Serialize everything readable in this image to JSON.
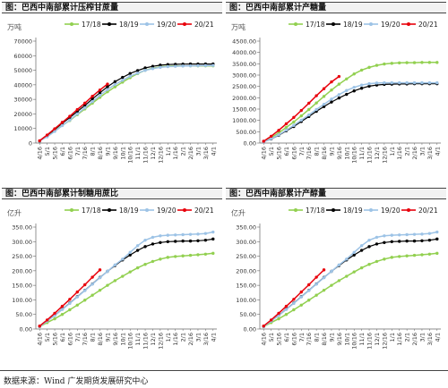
{
  "legend_labels": [
    "17/18",
    "18/19",
    "19/20",
    "20/21"
  ],
  "series_colors": [
    "#92d050",
    "#000000",
    "#9dc3e6",
    "#e8000b"
  ],
  "x_tick_labels": [
    "4/16",
    "5/1",
    "5/16",
    "6/1",
    "6/16",
    "7/1",
    "7/16",
    "8/1",
    "8/16",
    "9/1",
    "9/16",
    "10/1",
    "10/16",
    "11/1",
    "11/16",
    "12/1",
    "12/16",
    "1/1",
    "1/16",
    "2/1",
    "2/16",
    "3/1",
    "3/16",
    "4/1"
  ],
  "source": "数据来源：Wind  广发期货发展研究中心",
  "chart_data": [
    {
      "type": "line",
      "title": "图：巴西中南部累计压榨甘蔗量",
      "unit_label": "万吨",
      "yticks": [
        "0",
        "10000",
        "20000",
        "30000",
        "40000",
        "50000",
        "60000",
        "70000"
      ],
      "ylim": [
        0,
        70000
      ],
      "series": [
        {
          "name": "17/18",
          "values": [
            1400,
            4800,
            8300,
            12100,
            15500,
            19500,
            23400,
            27400,
            31400,
            35200,
            38600,
            41800,
            44900,
            47700,
            50000,
            51400,
            52400,
            52800,
            52900,
            52950,
            53000,
            53000,
            53000,
            53000
          ]
        },
        {
          "name": "18/19",
          "values": [
            1300,
            5200,
            9300,
            13600,
            17500,
            21700,
            25800,
            30300,
            34500,
            38700,
            42200,
            45100,
            47800,
            49800,
            51600,
            52700,
            53500,
            53900,
            54100,
            54200,
            54300,
            54300,
            54300,
            54300
          ]
        },
        {
          "name": "19/20",
          "values": [
            1400,
            4300,
            8000,
            12000,
            15800,
            20000,
            24200,
            28500,
            32700,
            36700,
            40200,
            43100,
            45900,
            48000,
            49900,
            51100,
            52000,
            52500,
            52700,
            52900,
            53000,
            53100,
            53200,
            53300
          ]
        },
        {
          "name": "20/21",
          "values": [
            1600,
            5500,
            9800,
            14200,
            18400,
            23000,
            27400,
            32100,
            36400,
            40500,
            null,
            null,
            null,
            null,
            null,
            null,
            null,
            null,
            null,
            null,
            null,
            null,
            null,
            null
          ]
        }
      ]
    },
    {
      "type": "line",
      "title": "图：巴西中南部累计产糖量",
      "unit_label": "万吨",
      "yticks": [
        "0.00",
        "500.00",
        "1000.00",
        "1500.00",
        "2000.00",
        "2500.00",
        "3000.00",
        "3500.00",
        "4000.00",
        "4500.00"
      ],
      "ylim": [
        0,
        4500
      ],
      "series": [
        {
          "name": "17/18",
          "values": [
            70,
            240,
            450,
            690,
            930,
            1200,
            1480,
            1770,
            2060,
            2340,
            2600,
            2830,
            3050,
            3220,
            3340,
            3430,
            3490,
            3520,
            3540,
            3550,
            3550,
            3560,
            3560,
            3560
          ]
        },
        {
          "name": "18/19",
          "values": [
            50,
            180,
            340,
            540,
            730,
            950,
            1170,
            1400,
            1610,
            1810,
            1990,
            2150,
            2300,
            2420,
            2510,
            2560,
            2590,
            2600,
            2610,
            2610,
            2620,
            2620,
            2620,
            2620
          ]
        },
        {
          "name": "19/20",
          "values": [
            50,
            190,
            360,
            570,
            780,
            1010,
            1240,
            1480,
            1710,
            1940,
            2140,
            2320,
            2460,
            2560,
            2620,
            2650,
            2660,
            2660,
            2660,
            2660,
            2660,
            2660,
            2660,
            2660
          ]
        },
        {
          "name": "20/21",
          "values": [
            80,
            300,
            560,
            850,
            1130,
            1440,
            1760,
            2090,
            2400,
            2700,
            2940,
            null,
            null,
            null,
            null,
            null,
            null,
            null,
            null,
            null,
            null,
            null,
            null,
            null
          ]
        }
      ]
    },
    {
      "type": "line",
      "title": "图：巴西中南部累计制糖用蔗比",
      "unit_label": "亿升",
      "yticks": [
        "0.00",
        "50.00",
        "100.00",
        "150.00",
        "200.00",
        "250.00",
        "300.00",
        "350.00"
      ],
      "ylim": [
        0,
        350
      ],
      "series": [
        {
          "name": "17/18",
          "values": [
            8,
            22,
            35,
            50,
            66,
            82,
            99,
            116,
            133,
            150,
            166,
            181,
            196,
            210,
            222,
            232,
            240,
            246,
            249,
            251,
            253,
            255,
            257,
            260
          ]
        },
        {
          "name": "18/19",
          "values": [
            9,
            28,
            47,
            68,
            89,
            111,
            133,
            155,
            177,
            198,
            218,
            237,
            254,
            270,
            283,
            292,
            297,
            300,
            301,
            302,
            302,
            303,
            305,
            309
          ]
        },
        {
          "name": "19/20",
          "values": [
            8,
            27,
            46,
            67,
            88,
            110,
            132,
            154,
            176,
            198,
            220,
            240,
            263,
            286,
            305,
            315,
            320,
            322,
            323,
            324,
            325,
            326,
            328,
            333
          ]
        },
        {
          "name": "20/21",
          "values": [
            10,
            31,
            54,
            78,
            102,
            127,
            152,
            178,
            203,
            null,
            null,
            null,
            null,
            null,
            null,
            null,
            null,
            null,
            null,
            null,
            null,
            null,
            null,
            null
          ]
        }
      ]
    },
    {
      "type": "line",
      "title": "图：巴西中南部累计产醇量",
      "unit_label": "亿升",
      "yticks": [
        "0.00",
        "50.00",
        "100.00",
        "150.00",
        "200.00",
        "250.00",
        "300.00",
        "350.00"
      ],
      "ylim": [
        0,
        350
      ],
      "series": [
        {
          "name": "17/18",
          "values": [
            8,
            22,
            35,
            50,
            66,
            82,
            99,
            116,
            133,
            150,
            166,
            181,
            196,
            210,
            222,
            232,
            240,
            246,
            249,
            251,
            253,
            255,
            257,
            260
          ]
        },
        {
          "name": "18/19",
          "values": [
            9,
            28,
            47,
            68,
            89,
            111,
            133,
            155,
            177,
            198,
            218,
            237,
            254,
            270,
            283,
            292,
            297,
            300,
            301,
            302,
            302,
            303,
            305,
            309
          ]
        },
        {
          "name": "19/20",
          "values": [
            8,
            27,
            46,
            67,
            88,
            110,
            132,
            154,
            176,
            198,
            220,
            240,
            263,
            286,
            305,
            315,
            320,
            322,
            323,
            324,
            325,
            326,
            328,
            333
          ]
        },
        {
          "name": "20/21",
          "values": [
            10,
            31,
            54,
            78,
            102,
            127,
            152,
            178,
            203,
            null,
            null,
            null,
            null,
            null,
            null,
            null,
            null,
            null,
            null,
            null,
            null,
            null,
            null,
            null
          ]
        }
      ]
    }
  ]
}
